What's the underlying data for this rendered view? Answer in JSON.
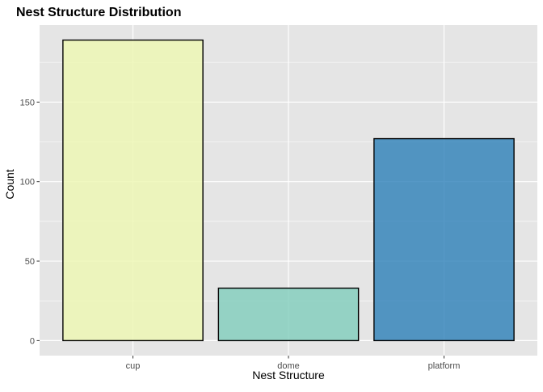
{
  "chart_data": {
    "type": "bar",
    "title": "Nest Structure Distribution",
    "xlabel": "Nest Structure",
    "ylabel": "Count",
    "categories": [
      "cup",
      "dome",
      "platform"
    ],
    "values": [
      189,
      33,
      127
    ],
    "ylim": [
      -9.45,
      198.45
    ],
    "yticks": [
      0,
      50,
      100,
      150
    ],
    "grid": true,
    "legend": "none",
    "colors": [
      "#edf8b1",
      "#7fcdbb",
      "#2c7fb8"
    ],
    "bar_opacity": 0.8,
    "bar_outline": "#000000",
    "panel_background": "#e5e5e5",
    "grid_color": "#ffffff"
  }
}
